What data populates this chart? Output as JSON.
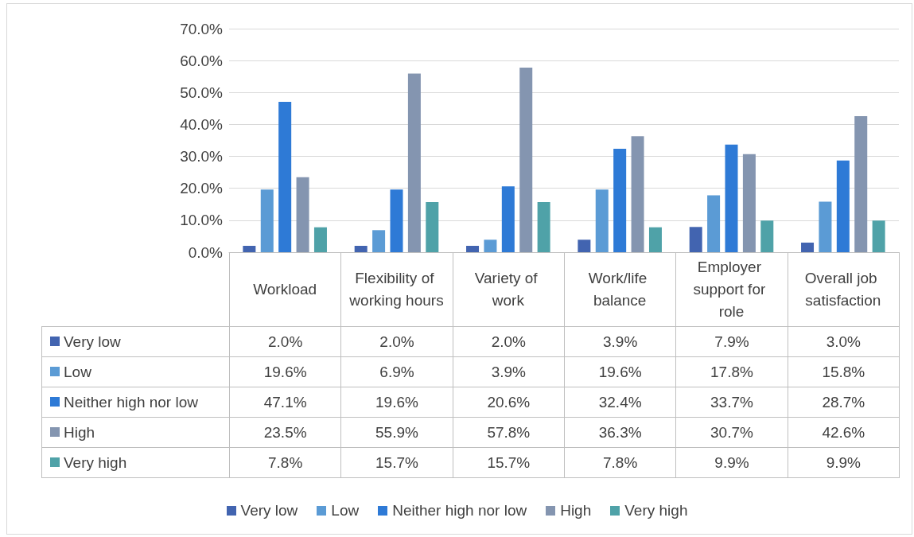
{
  "chart_data": {
    "type": "bar",
    "categories": [
      "Workload",
      "Flexibility of working hours",
      "Variety of work",
      "Work/life balance",
      "Employer support for role",
      "Overall job satisfaction"
    ],
    "series": [
      {
        "name": "Very low",
        "color": "#4264b0",
        "values": [
          2.0,
          2.0,
          2.0,
          3.9,
          7.9,
          3.0
        ],
        "value_labels": [
          "2.0%",
          "2.0%",
          "2.0%",
          "3.9%",
          "7.9%",
          "3.0%"
        ]
      },
      {
        "name": "Low",
        "color": "#5b9bd5",
        "values": [
          19.6,
          6.9,
          3.9,
          19.6,
          17.8,
          15.8
        ],
        "value_labels": [
          "19.6%",
          "6.9%",
          "3.9%",
          "19.6%",
          "17.8%",
          "15.8%"
        ]
      },
      {
        "name": "Neither high nor low",
        "color": "#2e7ad6",
        "values": [
          47.1,
          19.6,
          20.6,
          32.4,
          33.7,
          28.7
        ],
        "value_labels": [
          "47.1%",
          "19.6%",
          "20.6%",
          "32.4%",
          "33.7%",
          "28.7%"
        ]
      },
      {
        "name": "High",
        "color": "#8495b0",
        "values": [
          23.5,
          55.9,
          57.8,
          36.3,
          30.7,
          42.6
        ],
        "value_labels": [
          "23.5%",
          "55.9%",
          "57.8%",
          "36.3%",
          "30.7%",
          "42.6%"
        ]
      },
      {
        "name": "Very high",
        "color": "#4fa2a8",
        "values": [
          7.8,
          15.7,
          15.7,
          7.8,
          9.9,
          9.9
        ],
        "value_labels": [
          "7.8%",
          "15.7%",
          "15.7%",
          "7.8%",
          "9.9%",
          "9.9%"
        ]
      }
    ],
    "ylim": [
      0,
      70
    ],
    "yticks": [
      {
        "value": 0,
        "label": "0.0%"
      },
      {
        "value": 10,
        "label": "10.0%"
      },
      {
        "value": 20,
        "label": "20.0%"
      },
      {
        "value": 30,
        "label": "30.0%"
      },
      {
        "value": 40,
        "label": "40.0%"
      },
      {
        "value": 50,
        "label": "50.0%"
      },
      {
        "value": 60,
        "label": "60.0%"
      },
      {
        "value": 70,
        "label": "70.0%"
      }
    ],
    "grid": "y",
    "legend": "bottom"
  }
}
